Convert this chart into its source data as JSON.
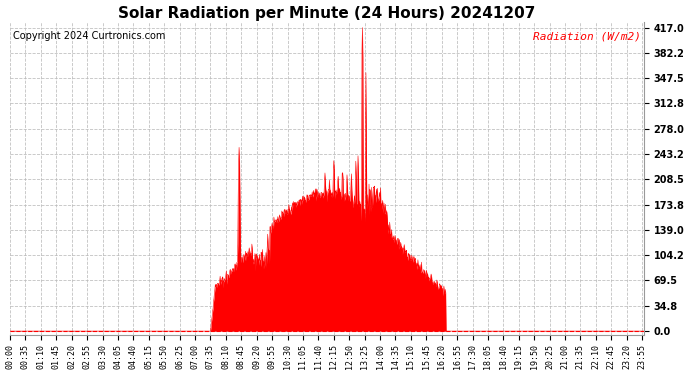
{
  "title": "Solar Radiation per Minute (24 Hours) 20241207",
  "copyright_text": "Copyright 2024 Curtronics.com",
  "legend_text": "Radiation (W/m2)",
  "yticks": [
    0.0,
    34.8,
    69.5,
    104.2,
    139.0,
    173.8,
    208.5,
    243.2,
    278.0,
    312.8,
    347.5,
    382.2,
    417.0
  ],
  "ymax": 417.0,
  "ymin": 0.0,
  "fill_color": "#FF0000",
  "line_color": "#FF0000",
  "zero_line_color": "#FF0000",
  "background_color": "#FFFFFF",
  "grid_color": "#BBBBBB",
  "title_fontsize": 11,
  "copyright_fontsize": 7,
  "legend_fontsize": 8,
  "ytick_fontsize": 7,
  "xtick_fontsize": 6
}
